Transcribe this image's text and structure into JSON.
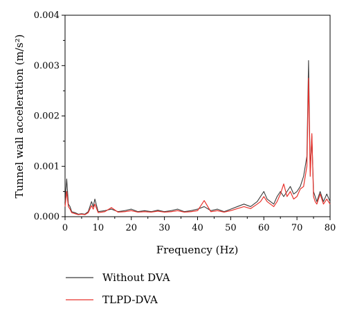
{
  "chart_data": {
    "type": "line",
    "xlabel": "Frequency (Hz)",
    "ylabel": "Tunnel wall acceleration (m/s²)",
    "xlim": [
      0,
      80
    ],
    "ylim": [
      0,
      0.004
    ],
    "x_ticks": [
      "0",
      "10",
      "20",
      "30",
      "40",
      "50",
      "60",
      "70",
      "80"
    ],
    "y_ticks": [
      "0.000",
      "0.001",
      "0.002",
      "0.003",
      "0.004"
    ],
    "grid": false,
    "legend_position": "bottom",
    "series": [
      {
        "name": "Without DVA",
        "color": "#3a3a3a",
        "x": [
          0,
          0.5,
          1,
          1.5,
          2,
          3,
          4,
          5,
          6,
          7,
          8,
          8.5,
          9,
          10,
          12,
          14,
          16,
          18,
          20,
          22,
          24,
          26,
          28,
          30,
          32,
          34,
          36,
          38,
          40,
          42,
          44,
          46,
          48,
          50,
          52,
          54,
          56,
          58,
          59,
          60,
          61,
          62,
          63,
          64,
          65,
          66,
          67,
          68,
          69,
          70,
          71,
          72,
          73,
          73.5,
          74,
          74.5,
          75,
          75.5,
          76,
          77,
          78,
          79,
          80
        ],
        "values": [
          0.0003,
          0.00075,
          0.00025,
          0.0002,
          0.0001,
          8e-05,
          5e-05,
          6e-05,
          5e-05,
          0.0001,
          0.0003,
          0.0002,
          0.00035,
          0.0001,
          0.00012,
          0.00015,
          0.0001,
          0.00012,
          0.00015,
          0.0001,
          0.00012,
          0.0001,
          0.00013,
          0.0001,
          0.00012,
          0.00015,
          0.0001,
          0.00012,
          0.00015,
          0.0002,
          0.00012,
          0.00015,
          0.0001,
          0.00015,
          0.0002,
          0.00025,
          0.0002,
          0.0003,
          0.0004,
          0.0005,
          0.00035,
          0.0003,
          0.00025,
          0.0004,
          0.0005,
          0.0004,
          0.0005,
          0.0006,
          0.00045,
          0.0005,
          0.0006,
          0.0008,
          0.0012,
          0.0031,
          0.0009,
          0.0016,
          0.0005,
          0.0004,
          0.0003,
          0.0005,
          0.0003,
          0.00045,
          0.0003
        ]
      },
      {
        "name": "TLPD-DVA",
        "color": "#e8302a",
        "x": [
          0,
          0.5,
          1,
          1.5,
          2,
          3,
          4,
          5,
          6,
          7,
          8,
          8.5,
          9,
          10,
          12,
          14,
          16,
          18,
          20,
          22,
          24,
          26,
          28,
          30,
          32,
          34,
          36,
          38,
          40,
          42,
          44,
          46,
          48,
          50,
          52,
          54,
          56,
          58,
          59,
          60,
          61,
          62,
          63,
          64,
          65,
          66,
          67,
          68,
          69,
          70,
          71,
          72,
          73,
          73.5,
          74,
          74.5,
          75,
          75.5,
          76,
          77,
          78,
          79,
          80
        ],
        "values": [
          0.0002,
          0.0005,
          0.0002,
          0.00015,
          8e-05,
          6e-05,
          4e-05,
          5e-05,
          4e-05,
          8e-05,
          0.00022,
          0.00015,
          0.00025,
          8e-05,
          0.0001,
          0.00018,
          9e-05,
          0.0001,
          0.00012,
          9e-05,
          0.0001,
          9e-05,
          0.00011,
          9e-05,
          0.0001,
          0.00012,
          9e-05,
          0.0001,
          0.00012,
          0.00032,
          0.0001,
          0.00012,
          9e-05,
          0.00012,
          0.00016,
          0.0002,
          0.00016,
          0.00025,
          0.0003,
          0.0004,
          0.0003,
          0.00025,
          0.0002,
          0.0003,
          0.00045,
          0.00065,
          0.0004,
          0.0005,
          0.00035,
          0.0004,
          0.00055,
          0.0006,
          0.001,
          0.00275,
          0.0008,
          0.00165,
          0.0004,
          0.0003,
          0.00025,
          0.00045,
          0.00025,
          0.00035,
          0.00025
        ]
      }
    ]
  }
}
